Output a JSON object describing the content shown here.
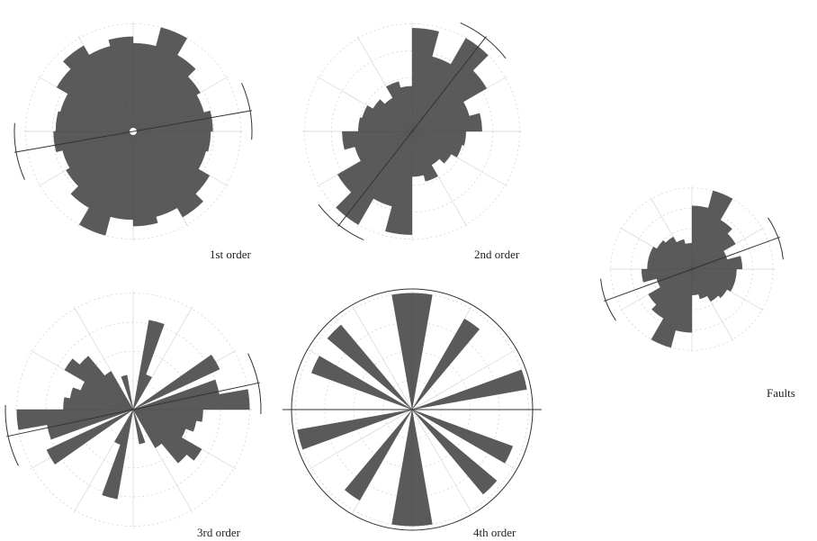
{
  "chart_data": [
    {
      "type": "rose",
      "label": "1st order",
      "bin_width_deg": 15,
      "bin_centers_deg": [
        7.5,
        22.5,
        37.5,
        52.5,
        67.5,
        82.5,
        97.5,
        112.5,
        127.5,
        142.5,
        157.5,
        172.5
      ],
      "values": [
        0.82,
        1.0,
        0.82,
        0.72,
        0.68,
        0.74,
        0.72,
        0.7,
        0.82,
        0.92,
        0.82,
        0.88
      ],
      "mean_direction_deg": 80,
      "full_circle_outline": false,
      "center_hole": true
    },
    {
      "type": "rose",
      "label": "2nd order",
      "bin_width_deg": 15,
      "bin_centers_deg": [
        7.5,
        22.5,
        37.5,
        52.5,
        67.5,
        82.5,
        97.5,
        112.5,
        127.5,
        142.5,
        157.5,
        172.5
      ],
      "values": [
        0.96,
        0.72,
        1.0,
        0.8,
        0.55,
        0.65,
        0.5,
        0.48,
        0.42,
        0.36,
        0.48,
        0.42
      ],
      "mean_direction_deg": 38,
      "full_circle_outline": false,
      "center_hole": false
    },
    {
      "type": "rose",
      "label": "3rd order",
      "bin_width_deg": 10,
      "bin_centers_deg": [
        15,
        25,
        60,
        75,
        85,
        95,
        105,
        115,
        125,
        135,
        145,
        165
      ],
      "values": [
        0.78,
        0.32,
        0.82,
        0.75,
        1.0,
        0.6,
        0.55,
        0.48,
        0.68,
        0.6,
        0.38,
        0.3
      ],
      "mean_direction_deg": 78,
      "full_circle_outline": false,
      "center_hole": false
    },
    {
      "type": "rose",
      "label": "4th order",
      "bin_width_deg": 10,
      "bin_centers_deg": [
        5,
        35,
        75,
        115,
        135,
        175
      ],
      "values": [
        1.0,
        0.9,
        1.0,
        0.92,
        0.95,
        1.0
      ],
      "mean_direction_deg": 90,
      "full_circle_outline": true,
      "center_hole": false
    },
    {
      "type": "rose",
      "label": "Faults",
      "bin_width_deg": 15,
      "bin_centers_deg": [
        7.5,
        22.5,
        37.5,
        52.5,
        67.5,
        82.5,
        97.5,
        112.5,
        127.5,
        142.5,
        157.5,
        172.5
      ],
      "values": [
        0.78,
        1.0,
        0.7,
        0.62,
        0.45,
        0.62,
        0.55,
        0.55,
        0.5,
        0.46,
        0.38,
        0.32
      ],
      "mean_direction_deg": 70,
      "full_circle_outline": false,
      "center_hole": false
    }
  ]
}
